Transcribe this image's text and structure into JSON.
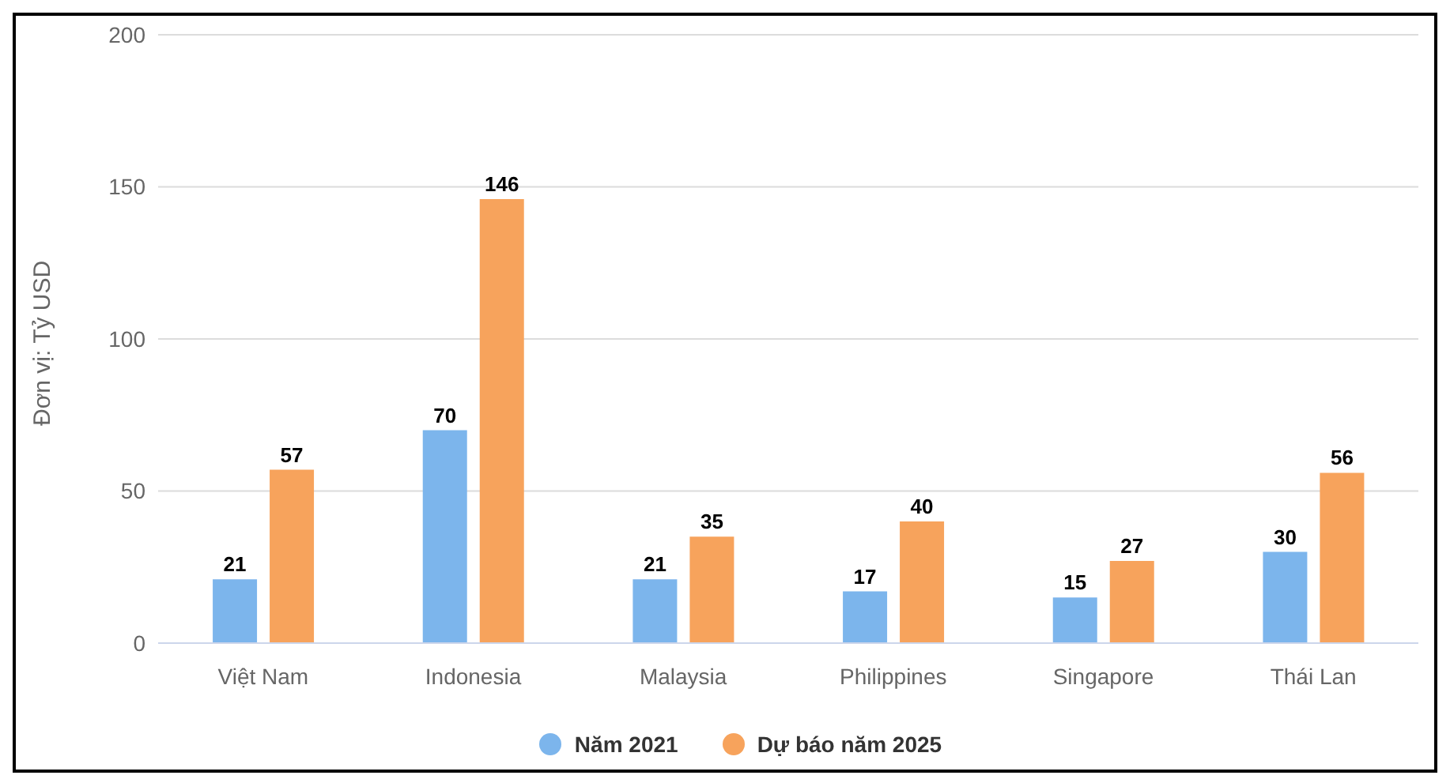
{
  "chart_data": {
    "type": "bar",
    "ylabel": "Đơn vị: Tỷ USD",
    "categories": [
      "Việt Nam",
      "Indonesia",
      "Malaysia",
      "Philippines",
      "Singapore",
      "Thái Lan"
    ],
    "series": [
      {
        "name": "Năm 2021",
        "color": "#7cb5ec",
        "values": [
          21,
          70,
          21,
          17,
          15,
          30
        ]
      },
      {
        "name": "Dự báo năm 2025",
        "color": "#f7a35c",
        "values": [
          57,
          146,
          35,
          40,
          27,
          56
        ]
      }
    ],
    "ylim": [
      0,
      200
    ],
    "yticks": [
      0,
      50,
      100,
      150,
      200
    ],
    "grid": "y",
    "legend": "bottom",
    "data_labels": true
  }
}
